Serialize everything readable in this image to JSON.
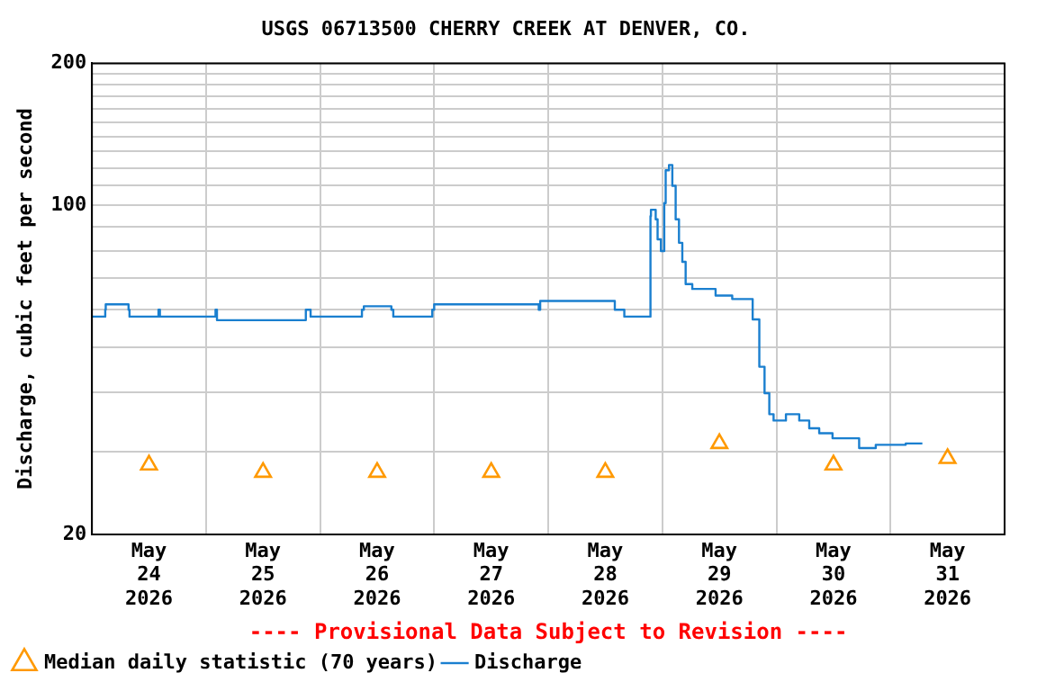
{
  "chart_data": {
    "type": "line",
    "title": "USGS 06713500 CHERRY CREEK AT DENVER, CO.",
    "ylabel": "Discharge, cubic feet per second",
    "annotations": [
      "---- Provisional Data Subject to Revision ----"
    ],
    "log": "y",
    "grid": true,
    "legend": "bottom left",
    "xlim": [
      "2026-05-24T00:00",
      "2026-06-01T00:00"
    ],
    "xticks": [
      {
        "value": "2026-05-24T12:00",
        "label": "May 24 2026"
      },
      {
        "value": "2026-05-25T00:00",
        "label": null
      },
      {
        "value": "2026-05-25T12:00",
        "label": "May 25 2026"
      },
      {
        "value": "2026-05-26T00:00",
        "label": null
      },
      {
        "value": "2026-05-26T12:00",
        "label": "May 26 2026"
      },
      {
        "value": "2026-05-27T00:00",
        "label": null
      },
      {
        "value": "2026-05-27T12:00",
        "label": "May 27 2026"
      },
      {
        "value": "2026-05-28T00:00",
        "label": null
      },
      {
        "value": "2026-05-28T12:00",
        "label": "May 28 2026"
      },
      {
        "value": "2026-05-29T00:00",
        "label": null
      },
      {
        "value": "2026-05-29T12:00",
        "label": "May 29 2026"
      },
      {
        "value": "2026-05-30T00:00",
        "label": null
      },
      {
        "value": "2026-05-30T12:00",
        "label": "May 30 2026"
      },
      {
        "value": "2026-05-31T00:00",
        "label": null
      },
      {
        "value": "2026-05-31T12:00",
        "label": "May 31 2026"
      }
    ],
    "ylim": [
      20,
      200
    ],
    "yticks": [
      20,
      {
        "value": 30,
        "label": null
      },
      {
        "value": 40,
        "label": null
      },
      {
        "value": 50,
        "label": null
      },
      {
        "value": 60,
        "label": null
      },
      {
        "value": 70,
        "label": null
      },
      {
        "value": 80,
        "label": null
      },
      {
        "value": 90,
        "label": null
      },
      100,
      {
        "value": 110,
        "label": null
      },
      {
        "value": 120,
        "label": null
      },
      {
        "value": 130,
        "label": null
      },
      {
        "value": 140,
        "label": null
      },
      {
        "value": 150,
        "label": null
      },
      {
        "value": 160,
        "label": null
      },
      {
        "value": 170,
        "label": null
      },
      {
        "value": 180,
        "label": null
      },
      {
        "value": 190,
        "label": null
      },
      200
    ],
    "series": [
      {
        "name": "Median daily statistic (70 years)",
        "type": "scatter",
        "marker": "triangle",
        "color": "#ff9900",
        "x": [
          "2026-05-24T12:00",
          "2026-05-25T12:00",
          "2026-05-26T12:00",
          "2026-05-27T12:00",
          "2026-05-28T12:00",
          "2026-05-29T12:00",
          "2026-05-30T12:00",
          "2026-05-31T12:00"
        ],
        "values": [
          28.1,
          27.1,
          27.1,
          27.1,
          27.1,
          31.2,
          28.1,
          29.0
        ]
      },
      {
        "name": "Discharge",
        "type": "step",
        "marker": "none",
        "color": "#1a7fcf",
        "x": [
          "2026-05-24T00:00",
          "2026-05-24T02:48",
          "2026-05-24T02:54",
          "2026-05-24T07:42",
          "2026-05-24T07:54",
          "2026-05-24T14:00",
          "2026-05-24T14:18",
          "2026-05-25T02:00",
          "2026-05-25T02:18",
          "2026-05-25T21:00",
          "2026-05-25T22:00",
          "2026-05-26T08:48",
          "2026-05-26T09:12",
          "2026-05-26T15:00",
          "2026-05-26T15:24",
          "2026-05-26T23:36",
          "2026-05-27T00:00",
          "2026-05-27T18:00",
          "2026-05-27T22:00",
          "2026-05-27T22:18",
          "2026-05-28T10:00",
          "2026-05-28T14:00",
          "2026-05-28T14:18",
          "2026-05-28T16:00",
          "2026-05-28T16:30",
          "2026-05-28T21:30",
          "2026-05-28T21:36",
          "2026-05-28T22:36",
          "2026-05-28T23:00",
          "2026-05-28T23:42",
          "2026-05-29T00:24",
          "2026-05-29T00:42",
          "2026-05-29T01:24",
          "2026-05-29T02:06",
          "2026-05-29T02:48",
          "2026-05-29T03:30",
          "2026-05-29T04:12",
          "2026-05-29T04:54",
          "2026-05-29T06:18",
          "2026-05-29T11:12",
          "2026-05-29T14:42",
          "2026-05-29T19:00",
          "2026-05-29T20:24",
          "2026-05-29T21:30",
          "2026-05-29T22:30",
          "2026-05-29T23:24",
          "2026-05-30T02:00",
          "2026-05-30T04:48",
          "2026-05-30T06:54",
          "2026-05-30T09:00",
          "2026-05-30T11:48",
          "2026-05-30T17:24",
          "2026-05-30T20:54",
          "2026-05-31T03:12",
          "2026-05-31T06:42"
        ],
        "values": [
          58,
          58,
          60,
          61.6,
          60,
          58,
          60,
          58,
          60,
          57,
          60,
          58,
          60,
          61,
          60,
          58,
          60,
          61.6,
          61.6,
          60,
          62.6,
          62.6,
          60,
          60,
          58,
          58,
          94.8,
          97.8,
          93.3,
          84.6,
          79.9,
          101,
          118.6,
          121.7,
          109.9,
          93.3,
          83.2,
          75.8,
          68,
          66.4,
          64.3,
          63.2,
          57.2,
          45.4,
          39.9,
          36,
          34.9,
          36,
          34.9,
          33.6,
          32.8,
          32,
          30.5,
          31,
          31.2
        ]
      }
    ]
  }
}
